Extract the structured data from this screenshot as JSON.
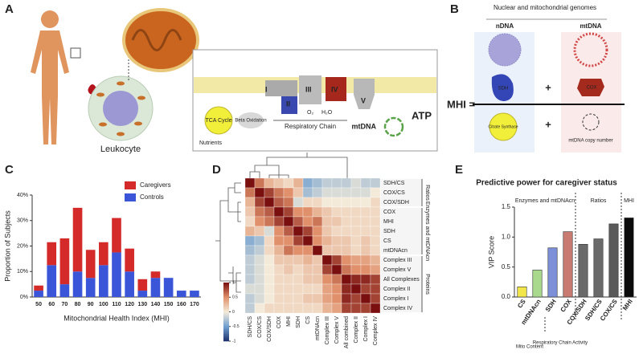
{
  "panel_labels": [
    "A",
    "B",
    "C",
    "D",
    "E"
  ],
  "panel_a": {
    "cell": "Leukocyte",
    "complexes": [
      "I",
      "II",
      "III",
      "IV",
      "V"
    ],
    "o2": "O₂",
    "h2o": "H₂O",
    "respiratory_chain": "Respiratory Chain",
    "tca": "TCA Cycle",
    "beta": "Beta Oxidation",
    "nutrients": "Nutrients",
    "mtdna": "mtDNA",
    "atp": "ATP"
  },
  "panel_b": {
    "heading": "Nuclear and mitochondrial genomes",
    "ndna": "nDNA",
    "mtdna": "mtDNA",
    "sdh": "SDH",
    "cox": "COX",
    "plus": [
      "+",
      "+"
    ],
    "mhi": "MHI =",
    "cs": "Citrate Synthase",
    "copy": "mtDNA copy number"
  },
  "chart_data": [
    {
      "type": "stacked-bar",
      "x_label": "Mitochondrial Health Index (MHI)",
      "y_label": "Proportion of Subjects",
      "categories": [
        "50",
        "60",
        "70",
        "80",
        "90",
        "100",
        "110",
        "120",
        "130",
        "140",
        "150",
        "160",
        "170"
      ],
      "series": [
        {
          "name": "Controls",
          "color": "#3b55d9",
          "values": [
            2.5,
            12.5,
            5,
            10,
            7.5,
            12.5,
            17.5,
            10,
            2.5,
            7.5,
            7.5,
            2.5,
            2.5
          ]
        },
        {
          "name": "Caregivers",
          "color": "#d42a2a",
          "values": [
            2,
            9,
            18,
            25,
            11,
            9,
            13.5,
            9,
            4.5,
            2.5,
            0,
            0,
            0
          ]
        }
      ],
      "ylim": [
        0,
        40
      ],
      "yticks": [
        {
          "value": 0,
          "label": "0%"
        },
        {
          "value": 10,
          "label": "10%"
        },
        {
          "value": 20,
          "label": "20%"
        },
        {
          "value": 30,
          "label": "30%"
        },
        {
          "value": 40,
          "label": "40%"
        }
      ],
      "legend": "top-right"
    },
    {
      "type": "heatmap",
      "rows": [
        "SDH/CS",
        "COX/CS",
        "COX/SDH",
        "COX",
        "MHI",
        "SDH",
        "CS",
        "mtDNAcn",
        "Complex III",
        "Complex V",
        "All Complexes",
        "Complex II",
        "Complex I",
        "Complex IV"
      ],
      "columns": [
        "SDH/CS",
        "COX/CS",
        "COX/SDH",
        "COX",
        "MHI",
        "SDH",
        "CS",
        "mtDNAcn",
        "Complex III",
        "Complex V",
        "All combined",
        "Complex II",
        "Complex I",
        "Complex IV"
      ],
      "groups": [
        "Ratios",
        "Enzymes and mtDNAcn",
        "Proteins"
      ],
      "values": [
        [
          1,
          0.6,
          0.3,
          0.2,
          0.1,
          0.3,
          -0.4,
          -0.3,
          -0.2,
          -0.2,
          -0.2,
          -0.1,
          -0.2,
          -0.2
        ],
        [
          0.6,
          1,
          0.8,
          0.6,
          0.5,
          0.2,
          -0.3,
          -0.2,
          -0.1,
          -0.1,
          -0.1,
          -0.1,
          -0.1,
          0
        ],
        [
          0.3,
          0.8,
          1,
          0.7,
          0.6,
          -0.1,
          0.1,
          0.1,
          0,
          0,
          0,
          0,
          0,
          0.1
        ],
        [
          0.2,
          0.6,
          0.7,
          1,
          0.8,
          0.5,
          0.5,
          0.3,
          0.2,
          0.1,
          0.1,
          0.1,
          0.1,
          0.1
        ],
        [
          0.1,
          0.5,
          0.6,
          0.8,
          1,
          0.7,
          0.5,
          0.6,
          0.2,
          0.2,
          0.1,
          0.1,
          0.1,
          0.1
        ],
        [
          0.3,
          0.2,
          -0.1,
          0.5,
          0.7,
          1,
          0.8,
          0.5,
          0.2,
          0.1,
          0.1,
          0.1,
          0.1,
          0.1
        ],
        [
          -0.4,
          -0.3,
          0.1,
          0.5,
          0.5,
          0.8,
          1,
          0.5,
          0.3,
          0.2,
          0.2,
          0.1,
          0.2,
          0.1
        ],
        [
          -0.3,
          -0.2,
          0.1,
          0.3,
          0.6,
          0.5,
          0.5,
          1,
          0.2,
          0.2,
          0.2,
          0.1,
          0.2,
          0.1
        ],
        [
          -0.2,
          -0.1,
          0,
          0.2,
          0.2,
          0.2,
          0.3,
          0.2,
          1,
          0.8,
          0.5,
          0.4,
          0.4,
          0.3
        ],
        [
          -0.2,
          -0.1,
          0,
          0.1,
          0.2,
          0.1,
          0.2,
          0.2,
          0.8,
          1,
          0.6,
          0.5,
          0.5,
          0.4
        ],
        [
          -0.2,
          -0.1,
          0,
          0.1,
          0.1,
          0.1,
          0.2,
          0.2,
          0.5,
          0.6,
          1,
          0.9,
          0.9,
          0.8
        ],
        [
          -0.1,
          -0.1,
          0,
          0.1,
          0.1,
          0.1,
          0.1,
          0.1,
          0.4,
          0.5,
          0.9,
          1,
          0.8,
          0.8
        ],
        [
          -0.2,
          -0.1,
          0,
          0.1,
          0.1,
          0.1,
          0.2,
          0.2,
          0.4,
          0.5,
          0.9,
          0.8,
          1,
          0.8
        ],
        [
          -0.2,
          0,
          0.1,
          0.1,
          0.1,
          0.1,
          0.1,
          0.1,
          0.3,
          0.4,
          0.8,
          0.8,
          0.8,
          1
        ]
      ],
      "zlim": [
        -1,
        1
      ],
      "zticks": [
        1,
        0.5,
        0,
        -0.5,
        -1
      ]
    },
    {
      "type": "bar",
      "title": "Predictive power for caregiver status",
      "y_label": "VIP Score",
      "categories": [
        "CS",
        "mtDNAcn",
        "SDH",
        "COX",
        "COX/SDH",
        "SDH/CS",
        "COX/CS",
        "MHI"
      ],
      "values": [
        0.17,
        0.45,
        0.82,
        1.09,
        0.88,
        0.97,
        1.22,
        1.32
      ],
      "colors": [
        "#f3e64a",
        "#a9d98c",
        "#7c8fd8",
        "#c97b72",
        "#6a6a6a",
        "#6a6a6a",
        "#5a5a5a",
        "#0a0a0a"
      ],
      "ylim": [
        0,
        1.5
      ],
      "yticks": [
        {
          "value": 0,
          "label": "0.0"
        },
        0.5,
        {
          "value": 1,
          "label": "1.0"
        },
        {
          "value": 1.5,
          "label": "1.5"
        }
      ],
      "annotations": [
        "Enzymes and mtDNAcn",
        "Ratios",
        "MHI",
        "Mito Content",
        "Respiratory Chain Activity"
      ]
    }
  ]
}
